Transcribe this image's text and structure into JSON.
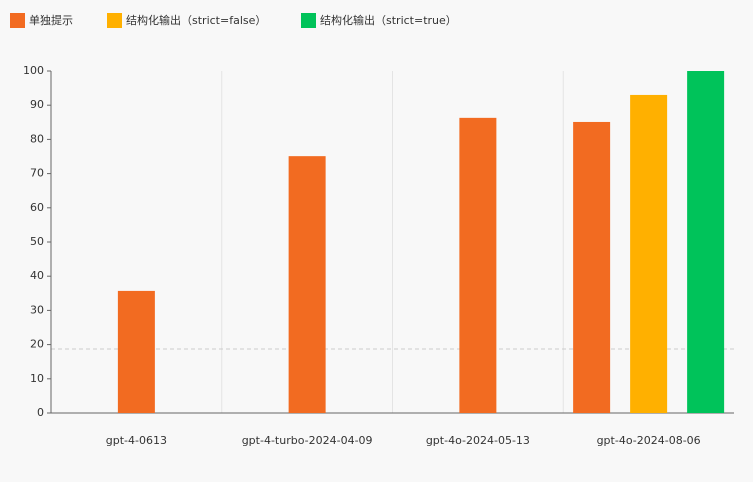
{
  "chart_data": {
    "type": "bar",
    "categories": [
      "gpt-4-0613",
      "gpt-4-turbo-2024-04-09",
      "gpt-4o-2024-05-13",
      "gpt-4o-2024-08-06"
    ],
    "series": [
      {
        "name": "单独提示",
        "color": "#f26b21",
        "values": [
          35.7,
          75.1,
          86.3,
          85.1
        ]
      },
      {
        "name": "结构化输出（strict=false）",
        "color": "#ffb000",
        "values": [
          null,
          null,
          null,
          93
        ]
      },
      {
        "name": "结构化输出（strict=true）",
        "color": "#00c35a",
        "values": [
          null,
          null,
          null,
          100
        ]
      }
    ],
    "ylim": [
      0,
      100
    ],
    "yticks": [
      0,
      10,
      20,
      30,
      40,
      50,
      60,
      70,
      80,
      90,
      100
    ],
    "reference_line": 18.7,
    "legend": "top-left"
  }
}
